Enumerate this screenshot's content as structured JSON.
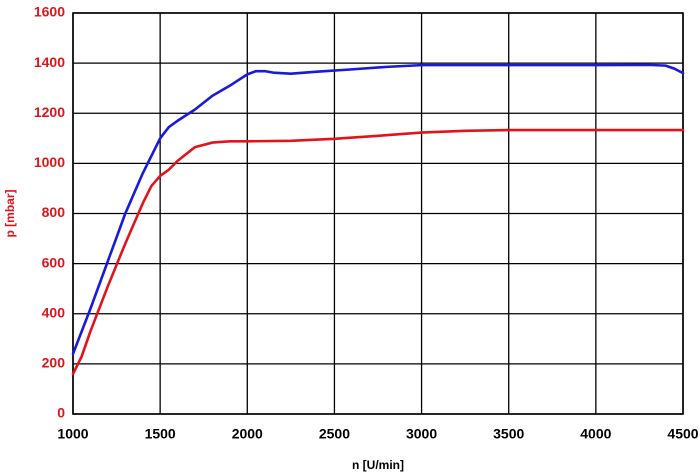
{
  "colors": {
    "y_axis_text": "#e0151c",
    "x_axis_text": "#000000",
    "grid": "#000000",
    "series_blue": "#1a1adb",
    "series_red": "#e0151c"
  },
  "chart_data": {
    "type": "line",
    "title": "",
    "xlabel": "n [U/min]",
    "ylabel": "p [mbar]",
    "xlim": [
      1000,
      4500
    ],
    "ylim": [
      0,
      1600
    ],
    "x_ticks": [
      1000,
      1500,
      2000,
      2500,
      3000,
      3500,
      4000,
      4500
    ],
    "y_ticks": [
      0,
      200,
      400,
      600,
      800,
      1000,
      1200,
      1400,
      1600
    ],
    "x_tick_labels": [
      "1000",
      "1500",
      "2000",
      "2500",
      "3000",
      "3500",
      "4000",
      "4500"
    ],
    "y_tick_labels": [
      "0",
      "200",
      "400",
      "600",
      "800",
      "1000",
      "1200",
      "1400",
      "1600"
    ],
    "grid": true,
    "legend": "none",
    "series": [
      {
        "color": "#1a1adb",
        "points": [
          [
            1000,
            240
          ],
          [
            1100,
            420
          ],
          [
            1200,
            610
          ],
          [
            1300,
            800
          ],
          [
            1400,
            960
          ],
          [
            1500,
            1100
          ],
          [
            1550,
            1145
          ],
          [
            1600,
            1170
          ],
          [
            1700,
            1215
          ],
          [
            1800,
            1270
          ],
          [
            1900,
            1310
          ],
          [
            2000,
            1355
          ],
          [
            2050,
            1368
          ],
          [
            2100,
            1368
          ],
          [
            2150,
            1362
          ],
          [
            2250,
            1358
          ],
          [
            2400,
            1366
          ],
          [
            2600,
            1375
          ],
          [
            2800,
            1385
          ],
          [
            3000,
            1392
          ],
          [
            3500,
            1392
          ],
          [
            4000,
            1392
          ],
          [
            4300,
            1393
          ],
          [
            4400,
            1390
          ],
          [
            4450,
            1378
          ],
          [
            4500,
            1360
          ]
        ]
      },
      {
        "color": "#e0151c",
        "points": [
          [
            1000,
            160
          ],
          [
            1050,
            230
          ],
          [
            1100,
            330
          ],
          [
            1200,
            510
          ],
          [
            1300,
            680
          ],
          [
            1400,
            840
          ],
          [
            1450,
            910
          ],
          [
            1500,
            950
          ],
          [
            1550,
            975
          ],
          [
            1600,
            1010
          ],
          [
            1700,
            1065
          ],
          [
            1800,
            1083
          ],
          [
            1900,
            1088
          ],
          [
            2000,
            1088
          ],
          [
            2250,
            1090
          ],
          [
            2500,
            1098
          ],
          [
            2750,
            1110
          ],
          [
            3000,
            1123
          ],
          [
            3250,
            1130
          ],
          [
            3500,
            1133
          ],
          [
            4000,
            1133
          ],
          [
            4500,
            1133
          ]
        ]
      }
    ]
  }
}
